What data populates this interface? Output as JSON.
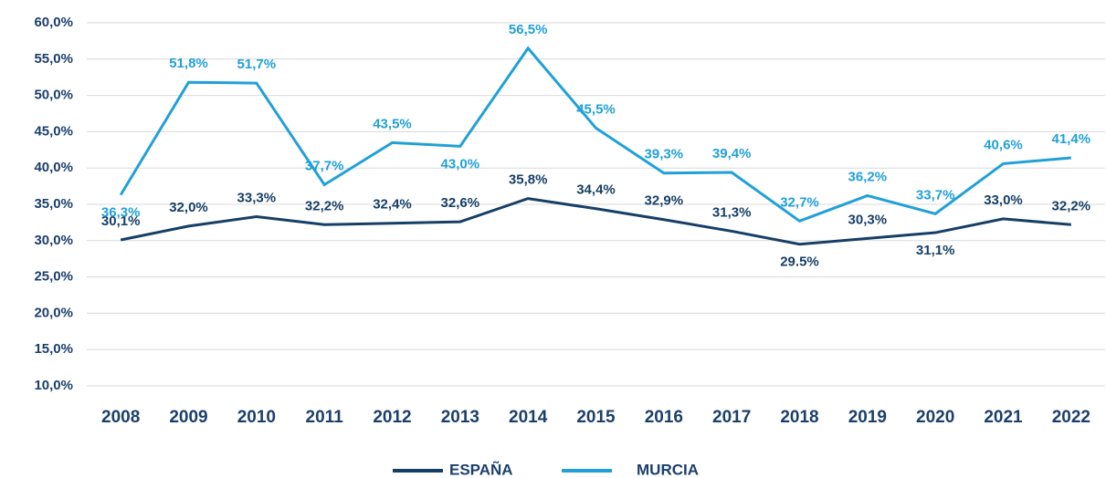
{
  "chart_data": {
    "type": "line",
    "categories": [
      "2008",
      "2009",
      "2010",
      "2011",
      "2012",
      "2013",
      "2014",
      "2015",
      "2016",
      "2017",
      "2018",
      "2019",
      "2020",
      "2021",
      "2022"
    ],
    "series": [
      {
        "name": "ESPAÑA",
        "color": "#163f66",
        "values": [
          30.1,
          32.0,
          33.3,
          32.2,
          32.4,
          32.6,
          35.8,
          34.4,
          32.9,
          31.3,
          29.5,
          30.3,
          31.1,
          33.0,
          32.2
        ],
        "value_labels": [
          "30,1%",
          "32,0%",
          "33,3%",
          "32,2%",
          "32,4%",
          "32,6%",
          "35,8%",
          "34,4%",
          "32,9%",
          "31,3%",
          "29.5%",
          "30,3%",
          "31,1%",
          "33,0%",
          "32,2%"
        ]
      },
      {
        "name": "MURCIA",
        "color": "#21a0d8",
        "values": [
          36.3,
          51.8,
          51.7,
          37.7,
          43.5,
          43.0,
          56.5,
          45.5,
          39.3,
          39.4,
          32.7,
          36.2,
          33.7,
          40.6,
          41.4
        ],
        "value_labels": [
          "36,3%",
          "51,8%",
          "51,7%",
          "37,7%",
          "43,5%",
          "43,0%",
          "56,5%",
          "45,5%",
          "39,3%",
          "39,4%",
          "32,7%",
          "36,2%",
          "33,7%",
          "40,6%",
          "41,4%"
        ]
      }
    ],
    "ylim": [
      10,
      60
    ],
    "yticks": [
      {
        "value": 10,
        "label": "10,0%"
      },
      {
        "value": 15,
        "label": "15,0%"
      },
      {
        "value": 20,
        "label": "20,0%"
      },
      {
        "value": 25,
        "label": "25,0%"
      },
      {
        "value": 30,
        "label": "30,0%"
      },
      {
        "value": 35,
        "label": "35,0%"
      },
      {
        "value": 40,
        "label": "40,0%"
      },
      {
        "value": 45,
        "label": "45,0%"
      },
      {
        "value": 50,
        "label": "50,0%"
      },
      {
        "value": 55,
        "label": "55,0%"
      },
      {
        "value": 60,
        "label": "60,0%"
      }
    ],
    "grid": true,
    "legend": "bottom"
  }
}
